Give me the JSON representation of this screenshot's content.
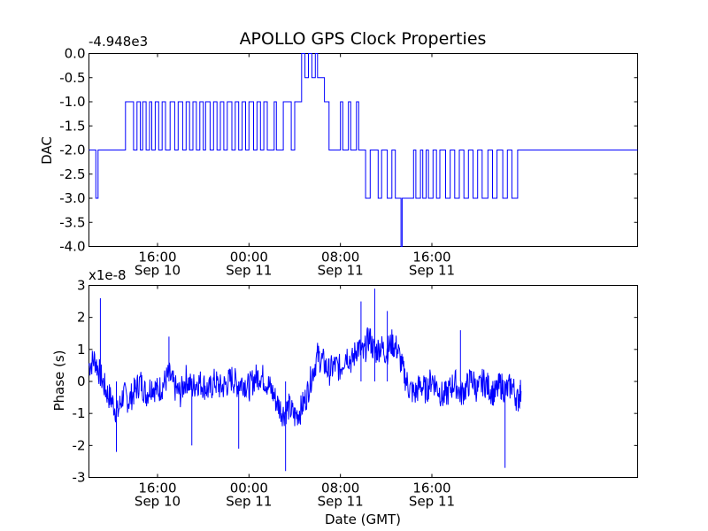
{
  "chart_data": [
    {
      "type": "line",
      "title": "APOLLO GPS Clock Properties",
      "offset_label": "-4.948e3",
      "ylabel": "DAC",
      "xlabel": "",
      "x_hours_range": [
        10,
        58
      ],
      "ylim": [
        -4.0,
        0.0
      ],
      "yticks": [
        {
          "value": 0.0,
          "label": "0.0"
        },
        {
          "value": -0.5,
          "label": "-0.5"
        },
        {
          "value": -1.0,
          "label": "-1.0"
        },
        {
          "value": -1.5,
          "label": "-1.5"
        },
        {
          "value": -2.0,
          "label": "-2.0"
        },
        {
          "value": -2.5,
          "label": "-2.5"
        },
        {
          "value": -3.0,
          "label": "-3.0"
        },
        {
          "value": -3.5,
          "label": "-3.5"
        },
        {
          "value": -4.0,
          "label": "-4.0"
        }
      ],
      "xticks": [
        {
          "hours": 16,
          "time": "16:00",
          "date": "Sep 10"
        },
        {
          "hours": 24,
          "time": "00:00",
          "date": "Sep 11"
        },
        {
          "hours": 32,
          "time": "08:00",
          "date": "Sep 11"
        },
        {
          "hours": 40,
          "time": "16:00",
          "date": "Sep 11"
        }
      ],
      "color": "#0000ff",
      "series": [
        {
          "name": "DAC",
          "segments": [
            [
              10.0,
              -2
            ],
            [
              10.6,
              -3
            ],
            [
              10.8,
              -2
            ],
            [
              13.2,
              -1
            ],
            [
              13.9,
              -2
            ],
            [
              14.2,
              -1
            ],
            [
              14.5,
              -2
            ],
            [
              14.7,
              -1
            ],
            [
              15.0,
              -2
            ],
            [
              15.3,
              -1
            ],
            [
              15.5,
              -2
            ],
            [
              15.8,
              -1
            ],
            [
              16.1,
              -2
            ],
            [
              16.4,
              -1
            ],
            [
              16.7,
              -2
            ],
            [
              17.1,
              -1
            ],
            [
              17.5,
              -2
            ],
            [
              17.8,
              -1
            ],
            [
              18.2,
              -2
            ],
            [
              18.5,
              -1
            ],
            [
              18.8,
              -2
            ],
            [
              19.1,
              -1
            ],
            [
              19.4,
              -2
            ],
            [
              19.7,
              -1
            ],
            [
              20.0,
              -2
            ],
            [
              20.2,
              -1
            ],
            [
              20.6,
              -2
            ],
            [
              20.9,
              -1
            ],
            [
              21.2,
              -2
            ],
            [
              21.5,
              -1
            ],
            [
              21.8,
              -2
            ],
            [
              22.1,
              -1
            ],
            [
              22.5,
              -2
            ],
            [
              22.8,
              -1
            ],
            [
              23.1,
              -2
            ],
            [
              23.4,
              -1
            ],
            [
              23.7,
              -2
            ],
            [
              24.0,
              -1
            ],
            [
              24.4,
              -2
            ],
            [
              24.7,
              -1
            ],
            [
              25.0,
              -2
            ],
            [
              25.3,
              -1
            ],
            [
              25.6,
              -2
            ],
            [
              26.2,
              -1
            ],
            [
              26.4,
              -2
            ],
            [
              27.0,
              -1
            ],
            [
              27.7,
              -2
            ],
            [
              28.0,
              -1
            ],
            [
              28.4,
              -1
            ],
            [
              28.6,
              0
            ],
            [
              28.9,
              -0.5
            ],
            [
              29.2,
              0
            ],
            [
              29.5,
              -0.5
            ],
            [
              29.8,
              0
            ],
            [
              30.0,
              -0.5
            ],
            [
              30.6,
              -1
            ],
            [
              31.0,
              -2
            ],
            [
              32.0,
              -1
            ],
            [
              32.2,
              -2
            ],
            [
              32.7,
              -1
            ],
            [
              32.9,
              -2
            ],
            [
              33.4,
              -1
            ],
            [
              33.6,
              -2
            ],
            [
              34.2,
              -3
            ],
            [
              34.6,
              -2
            ],
            [
              35.3,
              -3
            ],
            [
              35.6,
              -2
            ],
            [
              36.1,
              -3
            ],
            [
              36.5,
              -2
            ],
            [
              36.8,
              -3
            ],
            [
              37.3,
              -4
            ],
            [
              37.4,
              -3
            ],
            [
              38.4,
              -2
            ],
            [
              38.6,
              -3
            ],
            [
              39.0,
              -2
            ],
            [
              39.2,
              -3
            ],
            [
              39.5,
              -2
            ],
            [
              39.7,
              -3
            ],
            [
              40.1,
              -2
            ],
            [
              40.4,
              -3
            ],
            [
              40.7,
              -2
            ],
            [
              41.2,
              -3
            ],
            [
              41.6,
              -2
            ],
            [
              42.0,
              -3
            ],
            [
              42.4,
              -2
            ],
            [
              42.8,
              -3
            ],
            [
              43.2,
              -2
            ],
            [
              43.6,
              -3
            ],
            [
              44.0,
              -2
            ],
            [
              44.4,
              -3
            ],
            [
              44.9,
              -2
            ],
            [
              45.3,
              -3
            ],
            [
              45.7,
              -2
            ],
            [
              46.2,
              -3
            ],
            [
              46.6,
              -2
            ],
            [
              47.0,
              -3
            ],
            [
              47.5,
              -2
            ],
            [
              47.8,
              -2
            ]
          ]
        }
      ]
    },
    {
      "type": "line",
      "title": "",
      "offset_label": "x1e-8",
      "ylabel": "Phase (s)",
      "xlabel": "Date (GMT)",
      "x_hours_range": [
        10,
        58
      ],
      "ylim": [
        -3,
        3
      ],
      "yticks": [
        {
          "value": 3,
          "label": "3"
        },
        {
          "value": 2,
          "label": "2"
        },
        {
          "value": 1,
          "label": "1"
        },
        {
          "value": 0,
          "label": "0"
        },
        {
          "value": -1,
          "label": "-1"
        },
        {
          "value": -2,
          "label": "-2"
        },
        {
          "value": -3,
          "label": "-3"
        }
      ],
      "xticks": [
        {
          "hours": 16,
          "time": "16:00",
          "date": "Sep 10"
        },
        {
          "hours": 24,
          "time": "00:00",
          "date": "Sep 11"
        },
        {
          "hours": 32,
          "time": "08:00",
          "date": "Sep 11"
        },
        {
          "hours": 40,
          "time": "16:00",
          "date": "Sep 11"
        }
      ],
      "color": "#0000ff",
      "series": [
        {
          "name": "Phase",
          "points": [
            [
              10.0,
              0.5
            ],
            [
              10.5,
              0.7
            ],
            [
              11.0,
              0.2
            ],
            [
              11.5,
              -0.3
            ],
            [
              12.0,
              -0.6
            ],
            [
              12.5,
              -1.0
            ],
            [
              13.0,
              -0.4
            ],
            [
              13.5,
              -0.6
            ],
            [
              14.0,
              -0.3
            ],
            [
              14.5,
              0.0
            ],
            [
              15.0,
              -0.4
            ],
            [
              15.5,
              -0.1
            ],
            [
              16.0,
              -0.3
            ],
            [
              16.5,
              -0.1
            ],
            [
              17.0,
              0.2
            ],
            [
              17.5,
              -0.2
            ],
            [
              18.0,
              -0.4
            ],
            [
              18.5,
              0.1
            ],
            [
              19.0,
              -0.2
            ],
            [
              19.5,
              0.0
            ],
            [
              20.0,
              -0.1
            ],
            [
              20.5,
              -0.3
            ],
            [
              21.0,
              0.0
            ],
            [
              21.5,
              -0.2
            ],
            [
              22.0,
              -0.1
            ],
            [
              22.5,
              0.1
            ],
            [
              23.0,
              -0.1
            ],
            [
              23.5,
              0.0
            ],
            [
              24.0,
              -0.2
            ],
            [
              24.5,
              0.1
            ],
            [
              25.0,
              0.2
            ],
            [
              25.5,
              0.0
            ],
            [
              26.0,
              -0.3
            ],
            [
              26.5,
              -0.7
            ],
            [
              27.0,
              -1.0
            ],
            [
              27.5,
              -0.8
            ],
            [
              28.0,
              -1.1
            ],
            [
              28.5,
              -0.9
            ],
            [
              29.0,
              -0.5
            ],
            [
              29.5,
              0.2
            ],
            [
              30.0,
              0.8
            ],
            [
              30.5,
              0.6
            ],
            [
              31.0,
              0.3
            ],
            [
              31.5,
              0.5
            ],
            [
              32.0,
              0.4
            ],
            [
              32.5,
              0.9
            ],
            [
              33.0,
              0.6
            ],
            [
              33.5,
              1.1
            ],
            [
              34.0,
              0.8
            ],
            [
              34.5,
              1.4
            ],
            [
              35.0,
              0.9
            ],
            [
              35.5,
              1.1
            ],
            [
              36.0,
              0.9
            ],
            [
              36.5,
              1.2
            ],
            [
              37.0,
              1.0
            ],
            [
              37.5,
              0.3
            ],
            [
              38.0,
              -0.2
            ],
            [
              38.5,
              -0.4
            ],
            [
              39.0,
              -0.1
            ],
            [
              39.5,
              -0.3
            ],
            [
              40.0,
              0.1
            ],
            [
              40.5,
              -0.2
            ],
            [
              41.0,
              -0.5
            ],
            [
              41.5,
              -0.3
            ],
            [
              42.0,
              0.0
            ],
            [
              42.5,
              -0.4
            ],
            [
              43.0,
              -0.2
            ],
            [
              43.5,
              0.1
            ],
            [
              44.0,
              -0.3
            ],
            [
              44.5,
              0.0
            ],
            [
              45.0,
              -0.2
            ],
            [
              45.5,
              -0.4
            ],
            [
              46.0,
              -0.1
            ],
            [
              46.5,
              -0.3
            ],
            [
              47.0,
              -0.1
            ],
            [
              47.5,
              -0.6
            ],
            [
              47.8,
              -0.3
            ]
          ],
          "spikes": [
            [
              11.0,
              2.6
            ],
            [
              12.4,
              -2.2
            ],
            [
              17.0,
              1.4
            ],
            [
              19.0,
              -2.0
            ],
            [
              23.1,
              -2.1
            ],
            [
              27.2,
              -2.8
            ],
            [
              33.8,
              2.5
            ],
            [
              35.0,
              2.9
            ],
            [
              36.1,
              2.2
            ],
            [
              42.5,
              1.6
            ],
            [
              46.4,
              -2.7
            ]
          ]
        }
      ]
    }
  ]
}
